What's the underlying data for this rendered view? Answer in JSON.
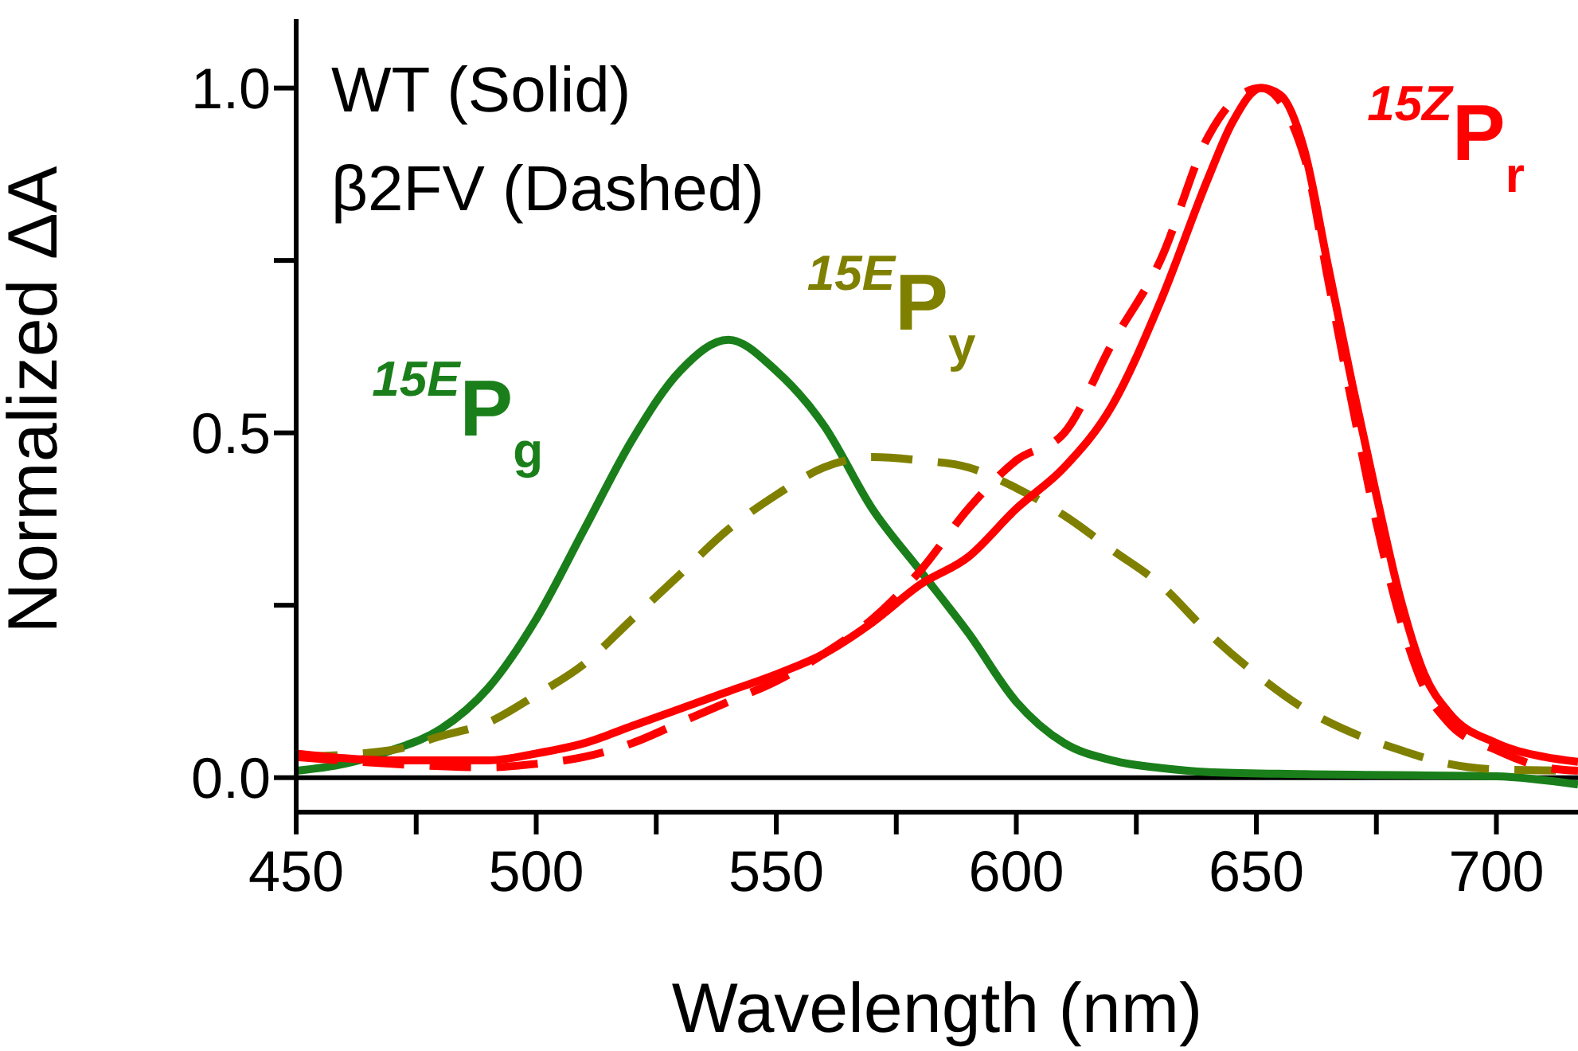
{
  "chart_data": {
    "type": "line",
    "xlabel": "Wavelength (nm)",
    "ylabel": "Normalized ΔA",
    "xlim": [
      450,
      717
    ],
    "ylim": [
      -0.05,
      1.1
    ],
    "xticks": [
      450,
      {
        "value": 475,
        "label": null
      },
      500,
      {
        "value": 525,
        "label": null
      },
      550,
      {
        "value": 575,
        "label": null
      },
      600,
      {
        "value": 625,
        "label": null
      },
      650,
      {
        "value": 675,
        "label": null
      },
      700
    ],
    "yticks": [
      {
        "value": 0,
        "label": "0.0"
      },
      {
        "value": 0.25,
        "label": null
      },
      {
        "value": 0.5,
        "label": "0.5"
      },
      {
        "value": 0.75,
        "label": null
      },
      {
        "value": 1,
        "label": "1.0"
      }
    ],
    "ref_lines": [
      {
        "axis": "y",
        "value": 0,
        "color": "#000000",
        "line_style": "solid"
      }
    ],
    "legend": false,
    "grid": false,
    "marker": "none",
    "series": [
      {
        "name": "$^{15E}$P$_{g}$",
        "color": "#1a7f1a",
        "line_style": "solid",
        "x": [
          450,
          460,
          470,
          480,
          490,
          500,
          510,
          520,
          530,
          540,
          550,
          560,
          570,
          580,
          590,
          600,
          610,
          620,
          630,
          640,
          660,
          700,
          717
        ],
        "values": [
          0.01,
          0.02,
          0.04,
          0.07,
          0.13,
          0.23,
          0.36,
          0.49,
          0.59,
          0.635,
          0.59,
          0.51,
          0.39,
          0.3,
          0.21,
          0.11,
          0.05,
          0.025,
          0.014,
          0.008,
          0.005,
          0.002,
          -0.01
        ]
      },
      {
        "name": "$^{15E}$P$_{y}$",
        "color": "#808000",
        "line_style": "dashed",
        "x": [
          450,
          470,
          480,
          490,
          500,
          510,
          520,
          530,
          540,
          550,
          560,
          570,
          580,
          590,
          600,
          610,
          620,
          630,
          640,
          650,
          660,
          670,
          680,
          690,
          700,
          717
        ],
        "values": [
          0.03,
          0.04,
          0.06,
          0.08,
          0.12,
          0.165,
          0.23,
          0.295,
          0.36,
          0.41,
          0.45,
          0.465,
          0.46,
          0.45,
          0.42,
          0.38,
          0.33,
          0.28,
          0.21,
          0.15,
          0.1,
          0.065,
          0.04,
          0.02,
          0.012,
          0.01
        ]
      },
      {
        "name": "$^{15Z}$P$_{r}$",
        "color": "#ff0000",
        "line_style": "solid",
        "x": [
          450,
          470,
          490,
          500,
          510,
          520,
          530,
          540,
          550,
          560,
          570,
          580,
          590,
          600,
          610,
          620,
          630,
          640,
          645,
          651,
          655,
          660,
          665,
          670,
          675,
          680,
          685,
          690,
          700,
          710,
          717
        ],
        "values": [
          0.035,
          0.025,
          0.025,
          0.035,
          0.05,
          0.075,
          0.1,
          0.125,
          0.15,
          0.18,
          0.225,
          0.28,
          0.32,
          0.39,
          0.45,
          0.54,
          0.69,
          0.87,
          0.95,
          1.0,
          0.99,
          0.91,
          0.74,
          0.57,
          0.41,
          0.26,
          0.15,
          0.095,
          0.05,
          0.03,
          0.023
        ]
      },
      {
        "color": "#ff0000",
        "line_style": "dashed",
        "x": [
          450,
          470,
          490,
          500,
          510,
          520,
          530,
          540,
          550,
          560,
          570,
          580,
          590,
          600,
          610,
          620,
          630,
          640,
          645,
          651,
          660,
          665,
          670,
          675,
          680,
          685,
          690,
          700,
          710,
          717
        ],
        "values": [
          0.03,
          0.02,
          0.015,
          0.02,
          0.03,
          0.05,
          0.08,
          0.11,
          0.14,
          0.18,
          0.23,
          0.3,
          0.39,
          0.46,
          0.5,
          0.63,
          0.75,
          0.93,
          0.98,
          1.0,
          0.9,
          0.72,
          0.54,
          0.37,
          0.23,
          0.13,
          0.08,
          0.04,
          0.015,
          0.01
        ]
      }
    ],
    "annotations": [
      "WT (Solid)",
      "β2FV (Dashed)"
    ]
  }
}
